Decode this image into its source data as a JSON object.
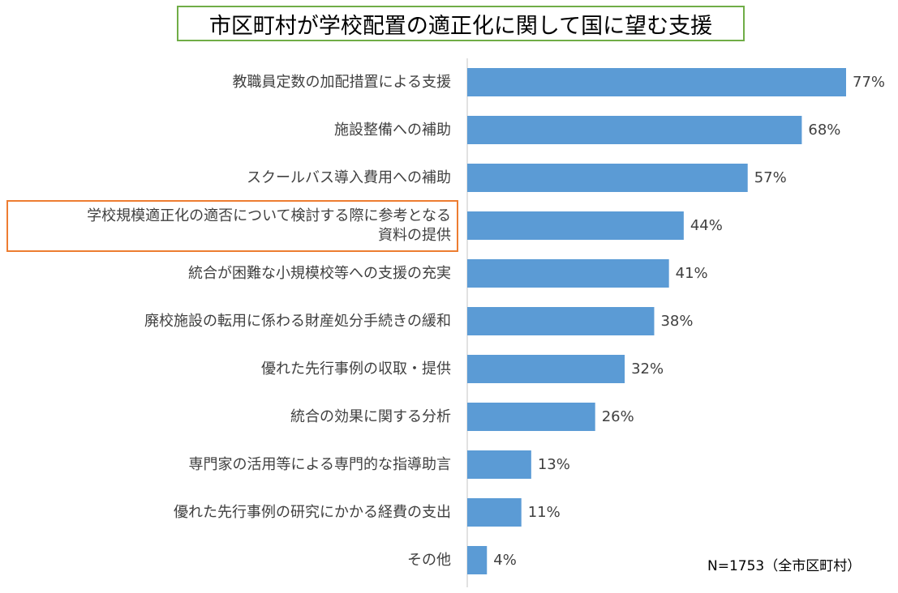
{
  "chart_data": {
    "type": "bar",
    "orientation": "horizontal",
    "title": "市区町村が学校配置の適正化に関して国に望む支援",
    "categories": [
      [
        "教職員定数の加配措置による支援"
      ],
      [
        "施設整備への補助"
      ],
      [
        "スクールバス導入費用への補助"
      ],
      [
        "学校規模適正化の適否について検討する際に参考となる",
        "資料の提供"
      ],
      [
        "統合が困難な小規模校等への支援の充実"
      ],
      [
        "廃校施設の転用に係わる財産処分手続きの緩和"
      ],
      [
        "優れた先行事例の収取・提供"
      ],
      [
        "統合の効果に関する分析"
      ],
      [
        "専門家の活用等による専門的な指導助言"
      ],
      [
        "優れた先行事例の研究にかかる経費の支出"
      ],
      [
        "その他"
      ]
    ],
    "values": [
      77,
      68,
      57,
      44,
      41,
      38,
      32,
      26,
      13,
      11,
      4
    ],
    "value_labels": [
      "77%",
      "68%",
      "57%",
      "44%",
      "41%",
      "38%",
      "32%",
      "26%",
      "13%",
      "11%",
      "4%"
    ],
    "unit": "%",
    "xlim": [
      0,
      77
    ],
    "grid": false,
    "bar_color": "#5b9bd5",
    "highlight_color": "#ed7d31",
    "title_border_color": "#70ad47",
    "highlighted_category_index": 3,
    "note": "N=1753（全市区町村）"
  }
}
